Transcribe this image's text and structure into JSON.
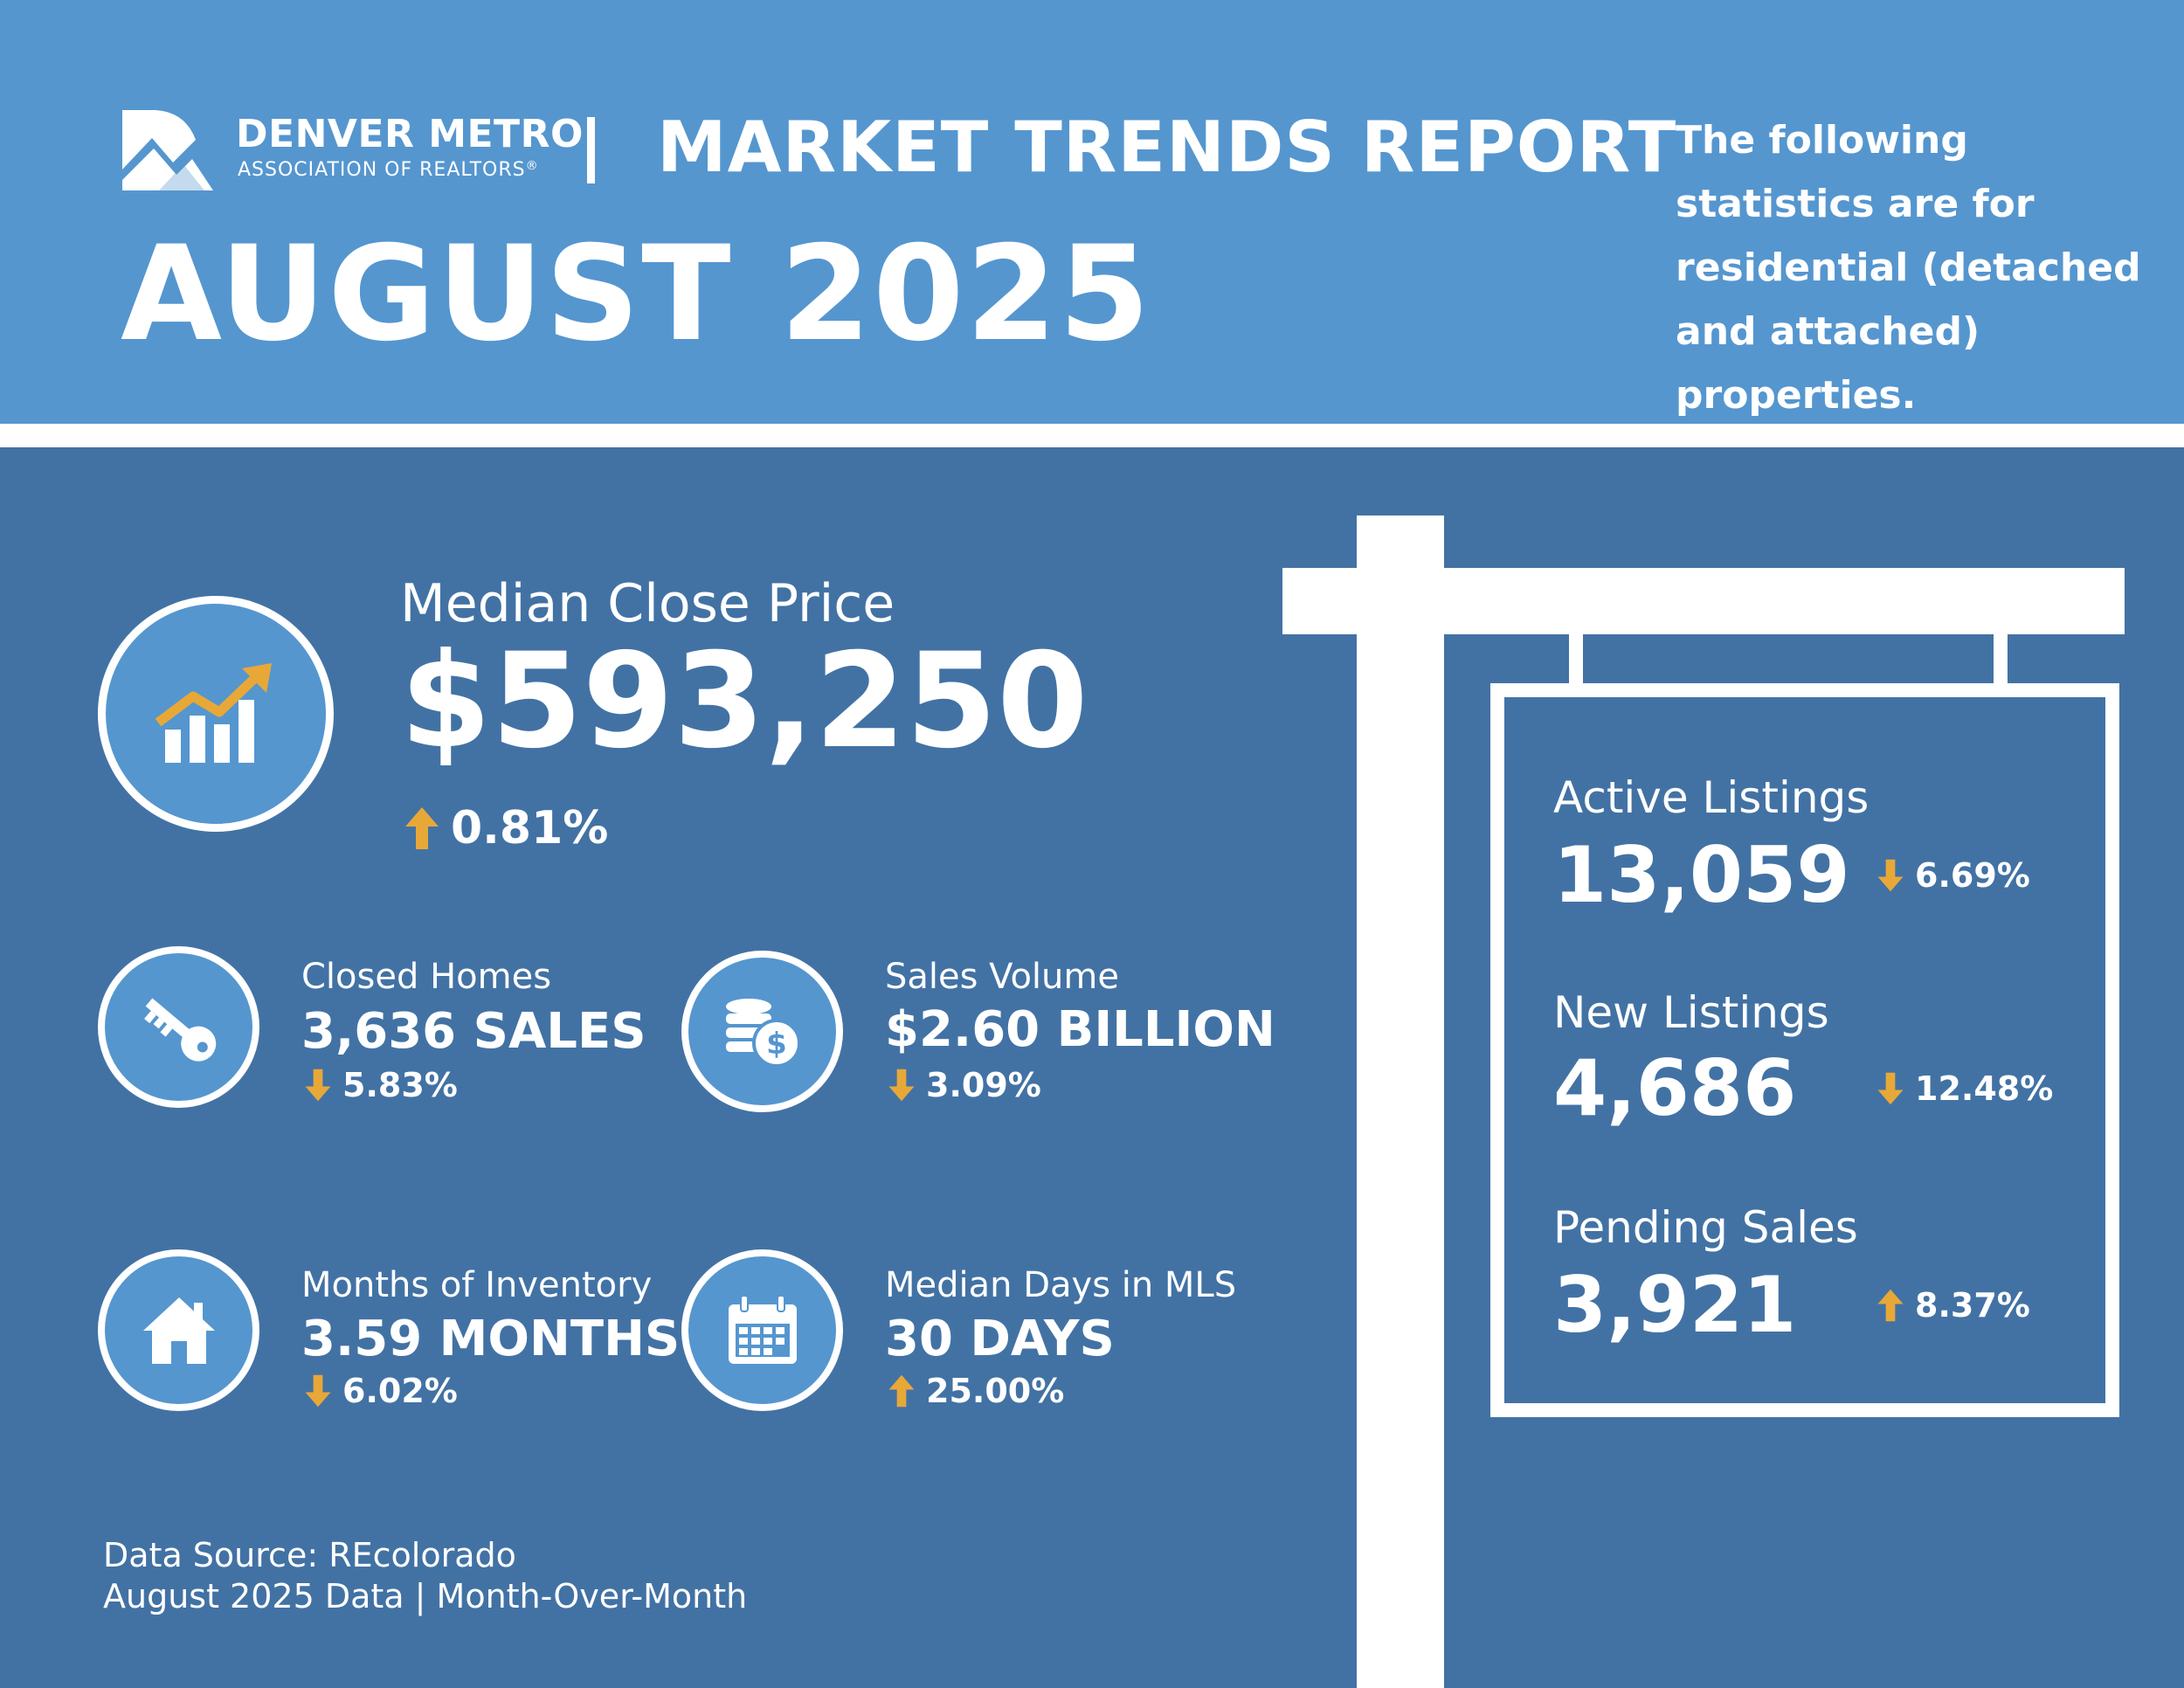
{
  "header": {
    "org_name": "DENVER METRO",
    "org_subtitle": "ASSOCIATION OF REALTORS",
    "org_mark": "®",
    "report_title": "MARKET TRENDS REPORT",
    "period": "AUGUST 2025",
    "note": "The following statistics are for residential (detached and attached) properties."
  },
  "colors": {
    "header_bg": "#5596cf",
    "body_bg": "#4272a4",
    "accent": "#e8a838",
    "text": "#ffffff"
  },
  "main_stat": {
    "label": "Median Close Price",
    "value": "$593,250",
    "change": "0.81%",
    "direction": "up",
    "icon": "chart-growth-icon"
  },
  "stats": [
    {
      "label": "Closed Homes",
      "value": "3,636 SALES",
      "change": "5.83%",
      "direction": "down",
      "icon": "key-icon"
    },
    {
      "label": "Sales Volume",
      "value": "$2.60 BILLION",
      "change": "3.09%",
      "direction": "down",
      "icon": "coins-icon"
    },
    {
      "label": "Months of Inventory",
      "value": "3.59 MONTHS",
      "change": "6.02%",
      "direction": "down",
      "icon": "house-icon"
    },
    {
      "label": "Median Days in MLS",
      "value": "30 DAYS",
      "change": "25.00%",
      "direction": "up",
      "icon": "calendar-icon"
    }
  ],
  "sign": [
    {
      "label": "Active Listings",
      "value": "13,059",
      "change": "6.69%",
      "direction": "down"
    },
    {
      "label": "New Listings",
      "value": "4,686",
      "change": "12.48%",
      "direction": "down"
    },
    {
      "label": "Pending Sales",
      "value": "3,921",
      "change": "8.37%",
      "direction": "up"
    }
  ],
  "footer": {
    "source": "Data Source: REcolorado",
    "period_note": "August 2025 Data | Month-Over-Month"
  }
}
